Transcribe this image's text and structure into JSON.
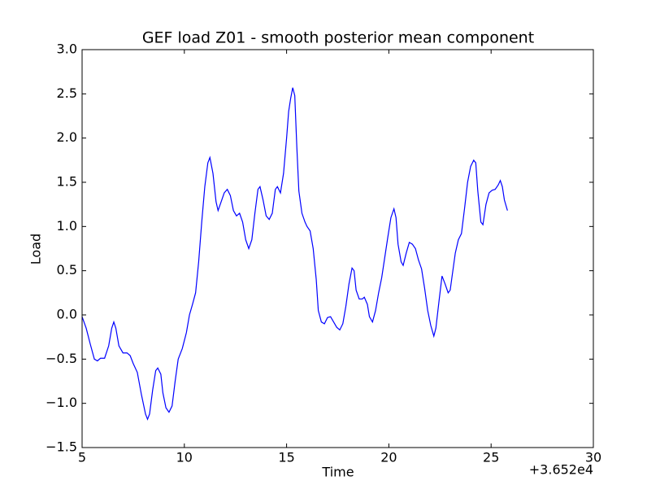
{
  "chart_data": {
    "type": "line",
    "title": "GEF load Z01 - smooth posterior mean component",
    "x_label": "Time",
    "y_label": "Load",
    "x_offset_label": "+3.652e4",
    "color": "#0000ff",
    "xlim": [
      5,
      30
    ],
    "xticks": [
      5,
      10,
      15,
      20,
      25,
      30
    ],
    "ylim": [
      -1.5,
      3.0
    ],
    "yticks": [
      {
        "value": -1.5,
        "label": "−1.5"
      },
      {
        "value": -1.0,
        "label": "−1.0"
      },
      {
        "value": -0.5,
        "label": "−0.5"
      },
      {
        "value": 0,
        "label": "0.0"
      },
      0.5,
      {
        "value": 1.0,
        "label": "1.0"
      },
      1.5,
      {
        "value": 2.0,
        "label": "2.0"
      },
      2.5,
      {
        "value": 3.0,
        "label": "3.0"
      }
    ],
    "x": [
      5.0,
      5.2,
      5.4,
      5.6,
      5.75,
      5.9,
      6.1,
      6.3,
      6.45,
      6.55,
      6.65,
      6.8,
      7.0,
      7.2,
      7.35,
      7.5,
      7.7,
      7.9,
      8.1,
      8.2,
      8.3,
      8.45,
      8.6,
      8.7,
      8.85,
      8.95,
      9.1,
      9.25,
      9.4,
      9.55,
      9.7,
      9.9,
      10.1,
      10.25,
      10.4,
      10.55,
      10.7,
      10.85,
      11.0,
      11.15,
      11.25,
      11.4,
      11.55,
      11.65,
      11.8,
      11.95,
      12.1,
      12.25,
      12.4,
      12.55,
      12.7,
      12.85,
      13.0,
      13.15,
      13.3,
      13.45,
      13.6,
      13.7,
      13.85,
      14.0,
      14.15,
      14.3,
      14.45,
      14.55,
      14.7,
      14.85,
      15.0,
      15.1,
      15.2,
      15.3,
      15.4,
      15.5,
      15.6,
      15.75,
      15.9,
      16.0,
      16.15,
      16.3,
      16.45,
      16.55,
      16.7,
      16.85,
      17.0,
      17.15,
      17.3,
      17.45,
      17.6,
      17.75,
      17.9,
      18.05,
      18.2,
      18.3,
      18.4,
      18.55,
      18.7,
      18.8,
      18.95,
      19.05,
      19.2,
      19.35,
      19.5,
      19.65,
      19.8,
      19.95,
      20.1,
      20.25,
      20.35,
      20.45,
      20.6,
      20.7,
      20.85,
      21.0,
      21.15,
      21.3,
      21.45,
      21.6,
      21.75,
      21.9,
      22.05,
      22.2,
      22.3,
      22.45,
      22.6,
      22.75,
      22.9,
      23.0,
      23.1,
      23.25,
      23.4,
      23.55,
      23.7,
      23.85,
      24.0,
      24.15,
      24.25,
      24.35,
      24.5,
      24.6,
      24.75,
      24.9,
      25.05,
      25.2,
      25.35,
      25.45,
      25.55,
      25.65,
      25.8
    ],
    "values": [
      -0.02,
      -0.15,
      -0.33,
      -0.5,
      -0.52,
      -0.49,
      -0.49,
      -0.35,
      -0.15,
      -0.08,
      -0.15,
      -0.35,
      -0.43,
      -0.43,
      -0.46,
      -0.55,
      -0.65,
      -0.9,
      -1.12,
      -1.18,
      -1.12,
      -0.85,
      -0.63,
      -0.6,
      -0.67,
      -0.88,
      -1.05,
      -1.1,
      -1.03,
      -0.75,
      -0.5,
      -0.38,
      -0.2,
      0,
      0.12,
      0.25,
      0.6,
      1.05,
      1.45,
      1.72,
      1.78,
      1.6,
      1.28,
      1.18,
      1.28,
      1.38,
      1.42,
      1.35,
      1.18,
      1.12,
      1.15,
      1.05,
      0.85,
      0.75,
      0.85,
      1.15,
      1.42,
      1.45,
      1.3,
      1.12,
      1.08,
      1.15,
      1.42,
      1.45,
      1.38,
      1.6,
      2.0,
      2.3,
      2.45,
      2.57,
      2.48,
      1.9,
      1.4,
      1.15,
      1.05,
      1.0,
      0.95,
      0.75,
      0.4,
      0.05,
      -0.08,
      -0.1,
      -0.03,
      -0.02,
      -0.08,
      -0.14,
      -0.17,
      -0.1,
      0.1,
      0.35,
      0.53,
      0.5,
      0.28,
      0.18,
      0.18,
      0.2,
      0.12,
      -0.02,
      -0.08,
      0.05,
      0.25,
      0.42,
      0.65,
      0.88,
      1.1,
      1.2,
      1.1,
      0.8,
      0.6,
      0.56,
      0.7,
      0.82,
      0.8,
      0.75,
      0.62,
      0.52,
      0.3,
      0.05,
      -0.12,
      -0.24,
      -0.15,
      0.15,
      0.44,
      0.35,
      0.25,
      0.28,
      0.45,
      0.7,
      0.85,
      0.92,
      1.2,
      1.5,
      1.68,
      1.75,
      1.72,
      1.4,
      1.05,
      1.02,
      1.25,
      1.38,
      1.41,
      1.42,
      1.47,
      1.52,
      1.45,
      1.3,
      1.18
    ]
  }
}
